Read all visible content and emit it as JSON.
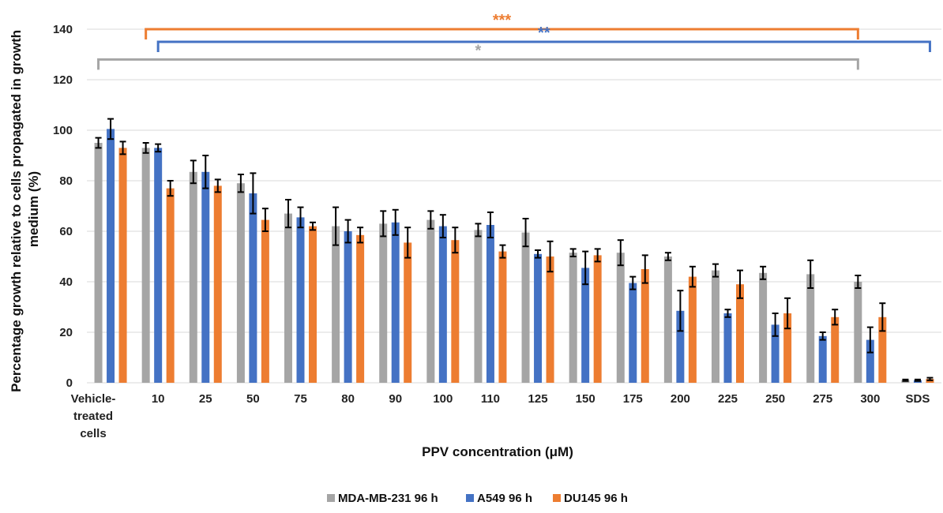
{
  "chart_data": {
    "type": "bar",
    "xlabel": "PPV concentration (μM)",
    "ylabel_lines": [
      "Percentage growth relative to cells propagated in growth",
      "medium (%)"
    ],
    "ylim": [
      0,
      140
    ],
    "yticks": [
      0,
      20,
      40,
      60,
      80,
      100,
      120,
      140
    ],
    "grid": true,
    "legend_position": "bottom-center",
    "categories": [
      [
        "Vehicle-",
        "treated",
        "cells"
      ],
      [
        "10"
      ],
      [
        "25"
      ],
      [
        "50"
      ],
      [
        "75"
      ],
      [
        "80"
      ],
      [
        "90"
      ],
      [
        "100"
      ],
      [
        "110"
      ],
      [
        "125"
      ],
      [
        "150"
      ],
      [
        "175"
      ],
      [
        "200"
      ],
      [
        "225"
      ],
      [
        "250"
      ],
      [
        "275"
      ],
      [
        "300"
      ],
      [
        "SDS"
      ]
    ],
    "series": [
      {
        "name": "MDA-MB-231 96 h",
        "color": "#a5a5a5",
        "values": [
          95,
          93,
          83.5,
          79,
          67,
          62,
          63,
          64.5,
          60.5,
          59.5,
          51.5,
          51.5,
          50,
          44.5,
          43.5,
          43,
          40,
          1
        ],
        "errors": [
          2,
          2,
          4.5,
          3.5,
          5.5,
          7.5,
          5,
          3.5,
          2.5,
          5.5,
          1.5,
          5,
          1.5,
          2.5,
          2.5,
          5.5,
          2.5,
          0.3
        ]
      },
      {
        "name": "A549 96 h",
        "color": "#4472c4",
        "values": [
          100.5,
          93,
          83.5,
          75,
          65.5,
          60,
          63.5,
          62,
          62.5,
          51,
          45.5,
          39.5,
          28.5,
          27.5,
          23,
          18.5,
          17,
          1
        ]
      },
      {
        "name": "DU145 96 h",
        "color": "#ed7d31",
        "values": [
          93,
          77,
          78,
          64.5,
          62,
          58.5,
          55.5,
          56.5,
          52,
          50,
          50.5,
          45,
          42,
          39,
          27.5,
          26,
          26,
          1.5
        ]
      }
    ],
    "significance": [
      {
        "label": "***",
        "color": "#ed7d31",
        "level": 140,
        "from_category": 1,
        "from_series": 0,
        "to_category": 16,
        "to_series": 0
      },
      {
        "label": "**",
        "color": "#4472c4",
        "level": 135,
        "from_category": 1,
        "from_series": 1,
        "to_category": 17,
        "to_series": 2
      },
      {
        "label": "*",
        "color": "#a5a5a5",
        "level": 128,
        "from_category": 0,
        "from_series": 0,
        "to_category": 16,
        "to_series": 0
      }
    ]
  },
  "error_bars": {
    "A549 96 h": [
      4,
      1.5,
      6.5,
      8,
      4,
      4.5,
      5,
      4.5,
      5,
      1.5,
      6.5,
      2.5,
      8,
      1.5,
      4.5,
      1.5,
      5,
      0.3
    ],
    "DU145 96 h": [
      2.5,
      3,
      2.5,
      4.5,
      1.5,
      3,
      6,
      5,
      2.5,
      6,
      2.5,
      5.5,
      4,
      5.5,
      6,
      3,
      5.5,
      0.5
    ]
  }
}
